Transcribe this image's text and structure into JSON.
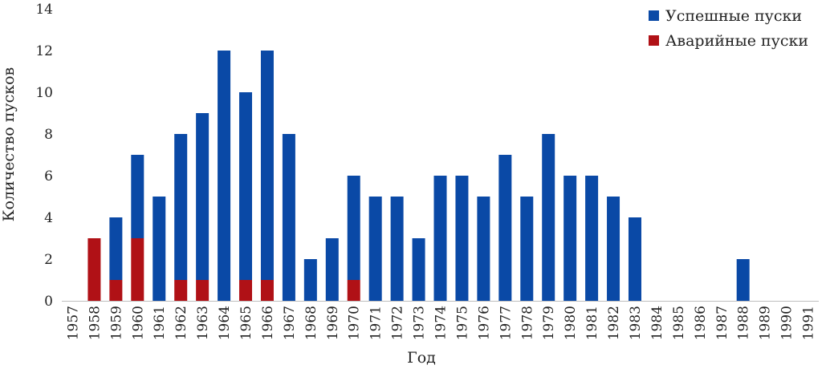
{
  "chart_data": {
    "type": "bar",
    "stacked": true,
    "xlabel": "Год",
    "ylabel": "Количество пусков",
    "ylim": [
      0,
      14
    ],
    "yticks": [
      0,
      2,
      4,
      6,
      8,
      10,
      12,
      14
    ],
    "grid": false,
    "legend_position": "top-right",
    "categories": [
      "1957",
      "1958",
      "1959",
      "1960",
      "1961",
      "1962",
      "1963",
      "1964",
      "1965",
      "1966",
      "1967",
      "1968",
      "1969",
      "1970",
      "1971",
      "1972",
      "1973",
      "1974",
      "1975",
      "1976",
      "1977",
      "1978",
      "1979",
      "1980",
      "1981",
      "1982",
      "1983",
      "1984",
      "1985",
      "1986",
      "1987",
      "1988",
      "1989",
      "1990",
      "1991"
    ],
    "series": [
      {
        "name": "Аварийные пуски",
        "color": "#b01116",
        "values": [
          0,
          3,
          1,
          3,
          0,
          1,
          1,
          0,
          1,
          1,
          0,
          0,
          0,
          1,
          0,
          0,
          0,
          0,
          0,
          0,
          0,
          0,
          0,
          0,
          0,
          0,
          0,
          0,
          0,
          0,
          0,
          0,
          0,
          0,
          0
        ]
      },
      {
        "name": "Успешные пуски",
        "color": "#0a49a6",
        "values": [
          0,
          0,
          3,
          4,
          5,
          7,
          8,
          12,
          9,
          11,
          8,
          2,
          3,
          5,
          5,
          5,
          3,
          6,
          6,
          5,
          7,
          5,
          8,
          6,
          6,
          5,
          4,
          0,
          0,
          0,
          0,
          2,
          0,
          0,
          0
        ]
      }
    ],
    "legend_order": [
      "Успешные пуски",
      "Аварийные пуски"
    ]
  }
}
